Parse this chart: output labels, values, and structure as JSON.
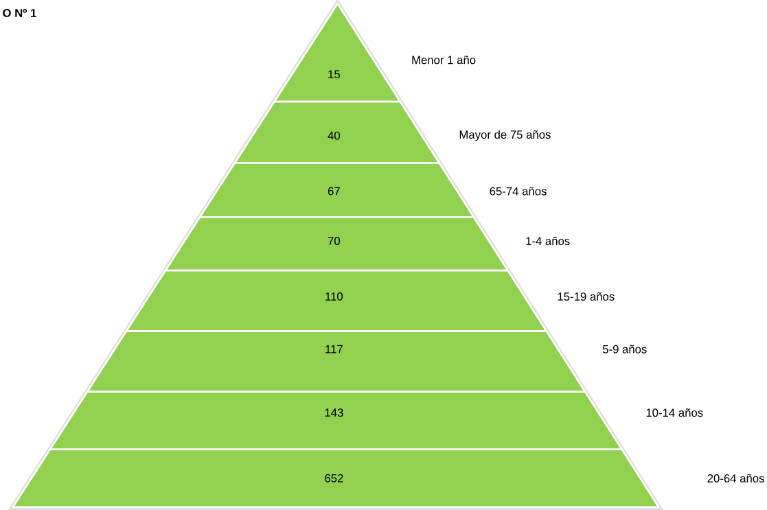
{
  "chart_data": {
    "type": "other",
    "title": "O Nº 1",
    "categories": [
      "Menor  1 año",
      "Mayor de 75 años",
      "65-74  años",
      "1-4  años",
      "15-19 años",
      "5-9  años",
      "10-14 años",
      "20-64 años"
    ],
    "values": [
      15,
      40,
      67,
      70,
      110,
      117,
      143,
      652
    ],
    "color": "#92d050",
    "data_labels": true
  }
}
